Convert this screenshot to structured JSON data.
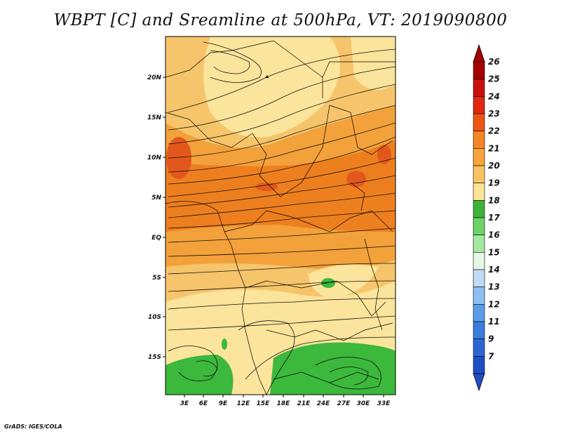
{
  "title": "WBPT [C] and Sreamline at 500hPa, VT: 2019090800",
  "credit": "GrADS: IGES/COLA",
  "map": {
    "lat_labels": [
      "20N",
      "15N",
      "10N",
      "5N",
      "EQ",
      "5S",
      "10S",
      "15S"
    ],
    "lon_labels": [
      "3E",
      "6E",
      "9E",
      "12E",
      "15E",
      "18E",
      "21E",
      "24E",
      "27E",
      "30E",
      "33E"
    ],
    "lat_range": [
      -20,
      24
    ],
    "lon_range": [
      0,
      35
    ],
    "field_colors": {
      "18": "#3cb83c",
      "19": "#fbe49b",
      "20": "#f6c46a",
      "21": "#f3a13a",
      "22": "#ee7f1e",
      "23": "#e2581c"
    }
  },
  "colorbar": {
    "labels": [
      "26",
      "25",
      "24",
      "23",
      "22",
      "21",
      "20",
      "19",
      "18",
      "17",
      "16",
      "15",
      "14",
      "13",
      "12",
      "11",
      "9",
      "7"
    ],
    "colors": [
      "#a40000",
      "#c80f0f",
      "#e0290f",
      "#ee5513",
      "#f48724",
      "#f7a53c",
      "#f8c463",
      "#fbe594",
      "#3eb339",
      "#6ed269",
      "#a5e8a0",
      "#e4f8e4",
      "#bfdcf6",
      "#8ec0f1",
      "#5c9deb",
      "#3b7ddd",
      "#2c66d2",
      "#1f4fc4"
    ]
  }
}
